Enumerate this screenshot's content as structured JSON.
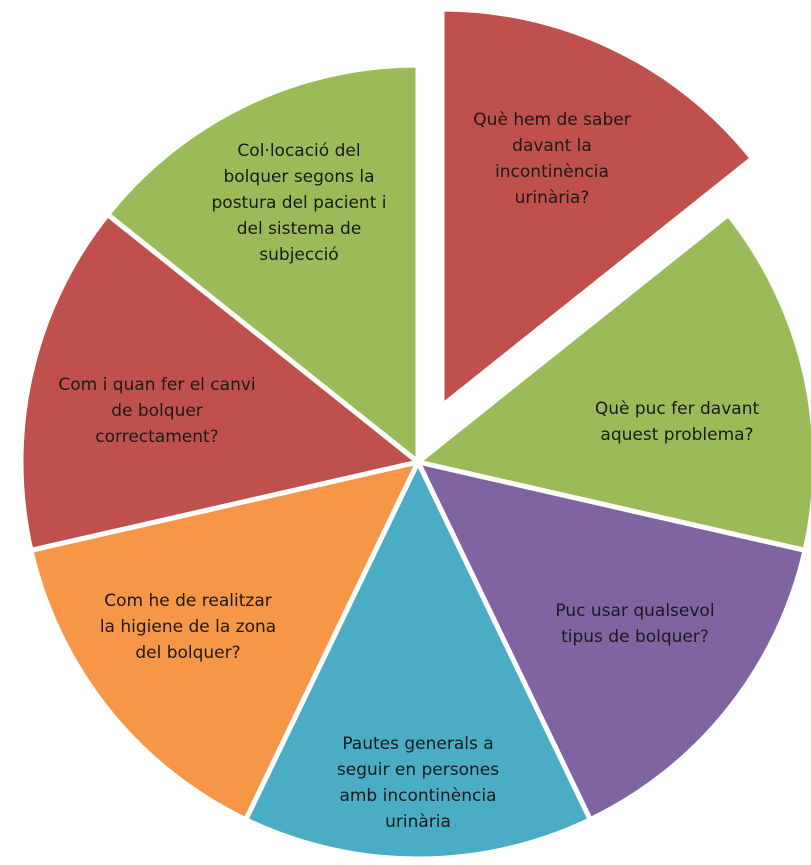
{
  "diagram": {
    "type": "segmented-circle",
    "colors": {
      "red": "#c0504d",
      "green": "#9bbb59",
      "purple": "#8064a2",
      "blue": "#4bacc6",
      "orange": "#f79646",
      "separator": "#ffffff"
    },
    "segments": [
      {
        "id": "que-hem-de-saber",
        "color": "red",
        "exploded": true,
        "lines": [
          "Què hem de saber",
          "davant la",
          "incontinència",
          "urinària?"
        ]
      },
      {
        "id": "que-puc-fer",
        "color": "green",
        "exploded": false,
        "lines": [
          "Què puc fer davant",
          "aquest problema?"
        ]
      },
      {
        "id": "puc-usar-bolquer",
        "color": "purple",
        "exploded": false,
        "lines": [
          "Puc usar qualsevol",
          "tipus de bolquer?"
        ]
      },
      {
        "id": "pautes-generals",
        "color": "blue",
        "exploded": false,
        "lines": [
          "Pautes generals a",
          "seguir en persones",
          "amb incontinència",
          "urinària"
        ]
      },
      {
        "id": "higiene-zona",
        "color": "orange",
        "exploded": false,
        "lines": [
          "Com he de realitzar",
          "la higiene de la zona",
          "del bolquer?"
        ]
      },
      {
        "id": "canvi-bolquer",
        "color": "red",
        "exploded": false,
        "lines": [
          "Com i quan fer el canvi",
          "de bolquer",
          "correctament?"
        ]
      },
      {
        "id": "col-locacio",
        "color": "green",
        "exploded": false,
        "lines": [
          "Col·locació del",
          "bolquer segons la",
          "postura del pacient i",
          "del sistema de",
          "subjecció"
        ]
      }
    ]
  }
}
